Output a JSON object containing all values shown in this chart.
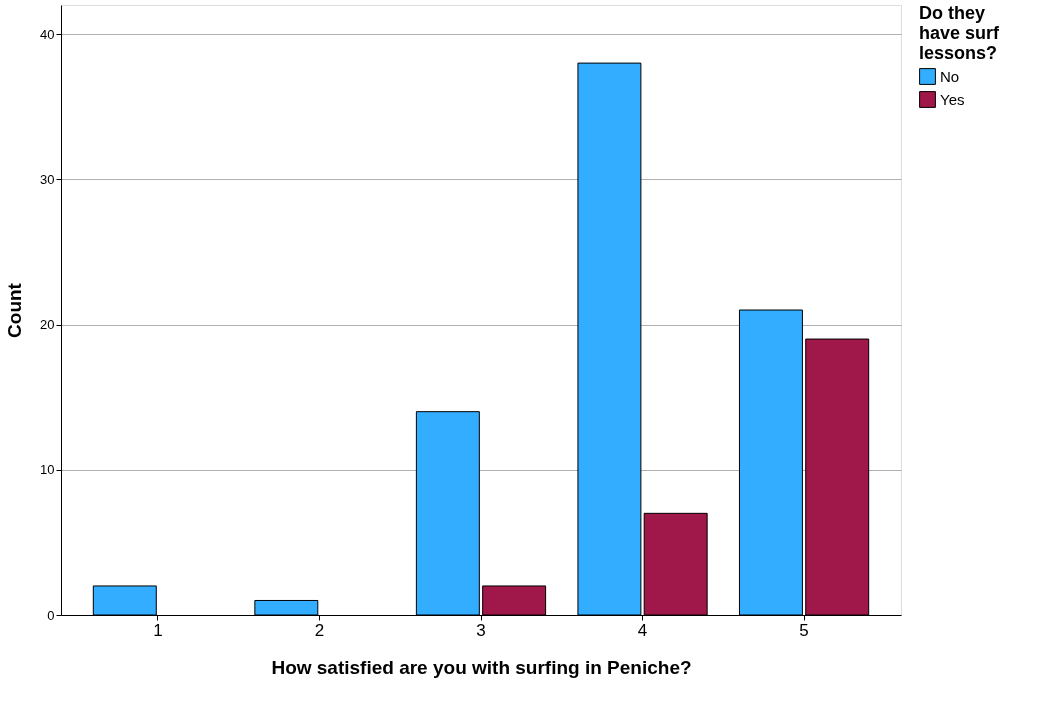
{
  "chart_data": {
    "type": "bar",
    "xlabel": "How satisfied are you with surfing in Peniche?",
    "ylabel": "Count",
    "legend_title": "Do they have surf lessons?",
    "categories": [
      "1",
      "2",
      "3",
      "4",
      "5"
    ],
    "series": [
      {
        "name": "No",
        "color": "#33adff",
        "values": [
          2,
          1,
          14,
          38,
          21
        ]
      },
      {
        "name": "Yes",
        "color": "#a0174a",
        "values": [
          null,
          null,
          2,
          7,
          19
        ]
      }
    ],
    "ylim": [
      0,
      42
    ],
    "yticks": [
      0,
      10,
      20,
      30,
      40
    ],
    "grid": "y",
    "legend": "top right"
  }
}
